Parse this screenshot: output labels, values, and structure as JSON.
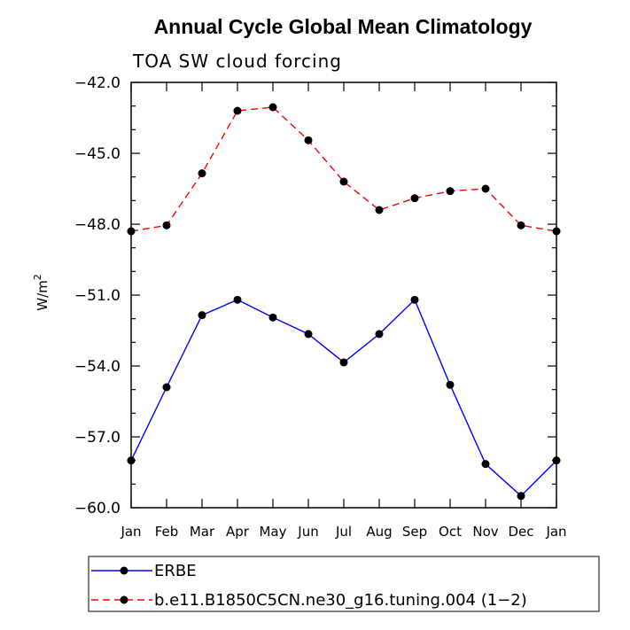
{
  "chart_data": {
    "type": "line",
    "title": "Annual Cycle Global Mean Climatology",
    "subtitle": "TOA SW cloud forcing",
    "ylabel": "W/m",
    "ylabel_sup": "2",
    "xlabel": "",
    "categories": [
      "Jan",
      "Feb",
      "Mar",
      "Apr",
      "May",
      "Jun",
      "Jul",
      "Aug",
      "Sep",
      "Oct",
      "Nov",
      "Dec",
      "Jan"
    ],
    "ylim": [
      -60.0,
      -42.0
    ],
    "yticks": [
      -60.0,
      -57.0,
      -54.0,
      -51.0,
      -48.0,
      -45.0,
      -42.0
    ],
    "ytick_labels": [
      "−60.0",
      "−57.0",
      "−54.0",
      "−51.0",
      "−48.0",
      "−45.0",
      "−42.0"
    ],
    "grid": false,
    "legend_position": "bottom",
    "series": [
      {
        "name": "ERBE",
        "color": "#0000ff",
        "dash": "solid",
        "values": [
          -58.0,
          -54.9,
          -51.85,
          -51.2,
          -51.95,
          -52.65,
          -53.85,
          -52.65,
          -51.2,
          -54.8,
          -58.15,
          -59.5,
          -58.0
        ]
      },
      {
        "name": "b.e11.B1850C5CN.ne30_g16.tuning.004 (1−2)",
        "color": "#ff0000",
        "dash": "dashed",
        "values": [
          -48.3,
          -48.05,
          -45.85,
          -43.2,
          -43.05,
          -44.45,
          -46.2,
          -47.4,
          -46.9,
          -46.6,
          -46.5,
          -48.05,
          -48.3
        ]
      }
    ]
  }
}
